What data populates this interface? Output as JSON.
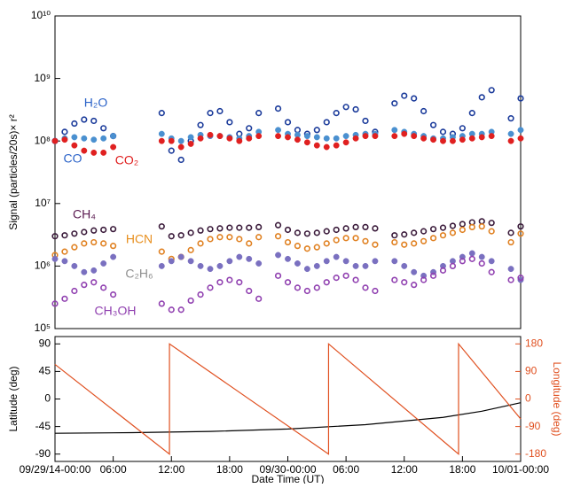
{
  "chart_data": [
    {
      "type": "scatter",
      "y_label": "Signal (particles/20s)× r²",
      "log_scale": true,
      "xlim": [
        0,
        48
      ],
      "ylim": [
        100000.0,
        10000000000.0
      ],
      "yticks": [
        {
          "value": 100000.0,
          "label": "10⁵"
        },
        {
          "value": 1000000.0,
          "label": "10⁶"
        },
        {
          "value": 10000000.0,
          "label": "10⁷"
        },
        {
          "value": 100000000.0,
          "label": "10⁸"
        },
        {
          "value": 1000000000.0,
          "label": "10⁹"
        },
        {
          "value": 10000000000.0,
          "label": "10¹⁰"
        }
      ],
      "x": [
        0,
        1,
        2,
        3,
        4,
        5,
        6,
        11,
        12,
        13,
        14,
        15,
        16,
        17,
        18,
        19,
        20,
        21,
        23,
        24,
        25,
        26,
        27,
        28,
        29,
        30,
        31,
        32,
        33,
        35,
        36,
        37,
        38,
        39,
        40,
        41,
        42,
        43,
        44,
        45,
        47,
        48
      ],
      "series": [
        {
          "name": "H₂O",
          "color": "#1a3a9a",
          "label_color": "#2a62c8",
          "marker": "open",
          "values": [
            100000000.0,
            140000000.0,
            190000000.0,
            220000000.0,
            210000000.0,
            160000000.0,
            120000000.0,
            280000000.0,
            70000000.0,
            50000000.0,
            100000000.0,
            180000000.0,
            280000000.0,
            300000000.0,
            200000000.0,
            130000000.0,
            160000000.0,
            280000000.0,
            330000000.0,
            200000000.0,
            150000000.0,
            130000000.0,
            150000000.0,
            200000000.0,
            280000000.0,
            350000000.0,
            320000000.0,
            210000000.0,
            140000000.0,
            400000000.0,
            530000000.0,
            480000000.0,
            300000000.0,
            180000000.0,
            140000000.0,
            130000000.0,
            160000000.0,
            280000000.0,
            500000000.0,
            650000000.0,
            230000000.0,
            480000000.0
          ]
        },
        {
          "name": "CO",
          "color": "#4a90d0",
          "label_color": "#2a62c8",
          "marker": "filled",
          "values": [
            100000000.0,
            110000000.0,
            115000000.0,
            110000000.0,
            105000000.0,
            110000000.0,
            120000000.0,
            130000000.0,
            110000000.0,
            100000000.0,
            115000000.0,
            125000000.0,
            120000000.0,
            120000000.0,
            115000000.0,
            110000000.0,
            120000000.0,
            140000000.0,
            150000000.0,
            130000000.0,
            125000000.0,
            120000000.0,
            115000000.0,
            110000000.0,
            110000000.0,
            120000000.0,
            125000000.0,
            130000000.0,
            130000000.0,
            150000000.0,
            140000000.0,
            130000000.0,
            120000000.0,
            110000000.0,
            110000000.0,
            115000000.0,
            120000000.0,
            130000000.0,
            130000000.0,
            140000000.0,
            130000000.0,
            150000000.0
          ]
        },
        {
          "name": "CO₂",
          "color": "#e02020",
          "label_color": "#e02020",
          "marker": "filled",
          "values": [
            100000000.0,
            105000000.0,
            85000000.0,
            70000000.0,
            65000000.0,
            65000000.0,
            80000000.0,
            100000000.0,
            100000000.0,
            80000000.0,
            90000000.0,
            110000000.0,
            125000000.0,
            120000000.0,
            110000000.0,
            100000000.0,
            110000000.0,
            120000000.0,
            120000000.0,
            115000000.0,
            105000000.0,
            95000000.0,
            85000000.0,
            80000000.0,
            85000000.0,
            95000000.0,
            110000000.0,
            120000000.0,
            120000000.0,
            120000000.0,
            130000000.0,
            120000000.0,
            110000000.0,
            105000000.0,
            100000000.0,
            100000000.0,
            105000000.0,
            110000000.0,
            115000000.0,
            120000000.0,
            100000000.0,
            110000000.0
          ]
        },
        {
          "name": "CH₄",
          "color": "#3a1a3a",
          "label_color": "#5a1a50",
          "marker": "open",
          "values": [
            3000000.0,
            3100000.0,
            3300000.0,
            3500000.0,
            3700000.0,
            3800000.0,
            3900000.0,
            4300000.0,
            3000000.0,
            3100000.0,
            3400000.0,
            3700000.0,
            3900000.0,
            4000000.0,
            4100000.0,
            4100000.0,
            4100000.0,
            4200000.0,
            4500000.0,
            3800000.0,
            3400000.0,
            3300000.0,
            3400000.0,
            3600000.0,
            3800000.0,
            4000000.0,
            4200000.0,
            4200000.0,
            4000000.0,
            3100000.0,
            3200000.0,
            3400000.0,
            3600000.0,
            3900000.0,
            4100000.0,
            4400000.0,
            4700000.0,
            5000000.0,
            5200000.0,
            4900000.0,
            3400000.0,
            4300000.0
          ]
        },
        {
          "name": "HCN",
          "color": "#e08020",
          "label_color": "#e89020",
          "marker": "open",
          "values": [
            1500000.0,
            1700000.0,
            2000000.0,
            2300000.0,
            2400000.0,
            2300000.0,
            2100000.0,
            1700000.0,
            1300000.0,
            1400000.0,
            1800000.0,
            2300000.0,
            2700000.0,
            2900000.0,
            2900000.0,
            2700000.0,
            2300000.0,
            2900000.0,
            3000000.0,
            2400000.0,
            2100000.0,
            1900000.0,
            2000000.0,
            2300000.0,
            2600000.0,
            2800000.0,
            2800000.0,
            2500000.0,
            2200000.0,
            2400000.0,
            2200000.0,
            2300000.0,
            2500000.0,
            2800000.0,
            3100000.0,
            3400000.0,
            3800000.0,
            4200000.0,
            4300000.0,
            3600000.0,
            2400000.0,
            3300000.0
          ]
        },
        {
          "name": "C₂H₆",
          "color": "#7a70c0",
          "label_color": "#909090",
          "marker": "filled",
          "values": [
            1300000.0,
            1200000.0,
            1000000.0,
            800000.0,
            850000.0,
            1100000.0,
            1400000.0,
            1000000.0,
            1200000.0,
            1400000.0,
            1200000.0,
            1000000.0,
            900000.0,
            1000000.0,
            1200000.0,
            1400000.0,
            1300000.0,
            1100000.0,
            1500000.0,
            1300000.0,
            1100000.0,
            900000.0,
            1000000.0,
            1200000.0,
            1400000.0,
            1200000.0,
            1000000.0,
            1000000.0,
            1200000.0,
            1200000.0,
            1000000.0,
            800000.0,
            700000.0,
            800000.0,
            1000000.0,
            1200000.0,
            1400000.0,
            1600000.0,
            1400000.0,
            1200000.0,
            900000.0,
            600000.0
          ]
        },
        {
          "name": "CH₃OH",
          "color": "#9040b0",
          "label_color": "#9040b0",
          "marker": "open",
          "values": [
            250000.0,
            300000.0,
            400000.0,
            500000.0,
            550000.0,
            450000.0,
            350000.0,
            250000.0,
            200000.0,
            200000.0,
            280000.0,
            350000.0,
            450000.0,
            550000.0,
            600000.0,
            550000.0,
            400000.0,
            300000.0,
            700000.0,
            550000.0,
            450000.0,
            400000.0,
            450000.0,
            550000.0,
            650000.0,
            700000.0,
            600000.0,
            450000.0,
            400000.0,
            600000.0,
            550000.0,
            500000.0,
            600000.0,
            700000.0,
            850000.0,
            1000000.0,
            1200000.0,
            1300000.0,
            1100000.0,
            800000.0,
            600000.0,
            650000.0
          ]
        }
      ]
    },
    {
      "type": "line",
      "x_label": "Date Time (UT)",
      "y_label": "Latitude (deg)",
      "y2_label": "Longitude (deg)",
      "y2_color": "#e05020",
      "xlim": [
        0,
        48
      ],
      "ylim": [
        -102,
        102
      ],
      "y2lim": [
        -204,
        204
      ],
      "xticks": [
        {
          "value": 0,
          "label": "09/29/14-00:00"
        },
        {
          "value": 6,
          "label": "06:00"
        },
        {
          "value": 12,
          "label": "12:00"
        },
        {
          "value": 18,
          "label": "18:00"
        },
        {
          "value": 24,
          "label": "09/30-00:00"
        },
        {
          "value": 30,
          "label": "06:00"
        },
        {
          "value": 36,
          "label": "12:00"
        },
        {
          "value": 42,
          "label": "18:00"
        },
        {
          "value": 48,
          "label": "10/01-00:00"
        }
      ],
      "yticks": [
        90,
        45,
        0,
        -45,
        -90
      ],
      "y2ticks": [
        180,
        90,
        0,
        -90,
        -180
      ],
      "series": [
        {
          "color": "#000000",
          "x": [
            0,
            8,
            16,
            24,
            32,
            40,
            44,
            48
          ],
          "values": [
            -56,
            -55,
            -53,
            -49,
            -42,
            -30,
            -20,
            -6
          ]
        },
        {
          "color": "#e05020",
          "axis": "y2",
          "x": [
            0,
            11.8,
            11.8,
            28.2,
            28.2,
            41.6,
            41.6,
            48
          ],
          "values": [
            113,
            -180,
            180,
            -180,
            180,
            -180,
            180,
            -65
          ]
        }
      ]
    }
  ]
}
